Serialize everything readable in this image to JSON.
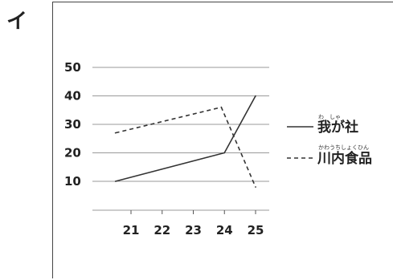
{
  "panel_label": "イ",
  "chart_data": {
    "type": "line",
    "title": "",
    "xlabel": "",
    "ylabel": "",
    "categories": [
      "21",
      "22",
      "23",
      "24",
      "25"
    ],
    "yticks": [
      10,
      20,
      30,
      40,
      50
    ],
    "ylim": [
      0,
      50
    ],
    "grid": true,
    "legend_position": "right",
    "series": [
      {
        "name": "我が社",
        "ruby": "わ　しゃ",
        "style": "solid",
        "color": "#333333",
        "points": [
          [
            20.5,
            10
          ],
          [
            24,
            20
          ],
          [
            25,
            40
          ]
        ]
      },
      {
        "name": "川内食品",
        "ruby": "かわうちしょくひん",
        "style": "dashed",
        "color": "#333333",
        "points": [
          [
            20.5,
            27
          ],
          [
            23.9,
            36
          ],
          [
            25,
            8
          ]
        ]
      }
    ]
  }
}
